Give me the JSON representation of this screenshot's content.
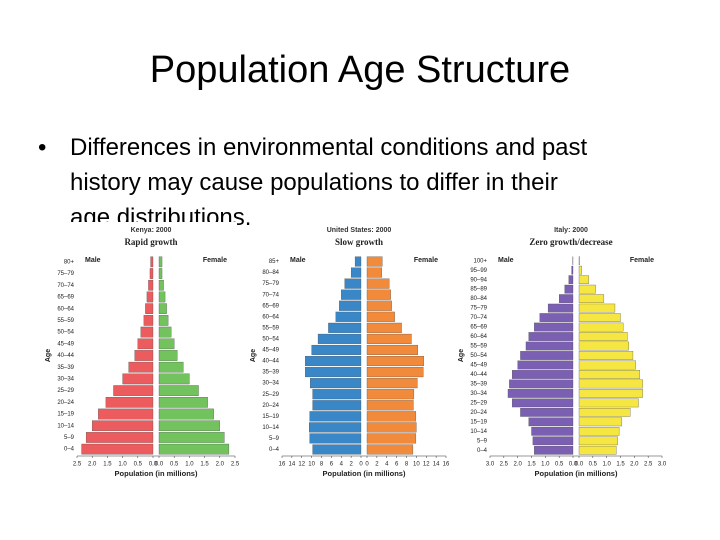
{
  "slide": {
    "title": "Population Age Structure",
    "bullet": [
      "Differences in environmental conditions and past",
      "history may cause populations to differ in their",
      "age distributions."
    ]
  },
  "chart_data": [
    {
      "type": "pyramid",
      "title": "Kenya: 2000",
      "subtitle": "Rapid growth",
      "xlabel": "Population (in millions)",
      "ylabel": "Age",
      "categories": [
        "0–4",
        "5–9",
        "10–14",
        "15–19",
        "20–24",
        "25–29",
        "30–34",
        "35–39",
        "40–44",
        "45–49",
        "50–54",
        "55–59",
        "60–64",
        "65–69",
        "70–74",
        "75–79",
        "80+"
      ],
      "series": [
        {
          "name": "Male",
          "color": "#ec5c5e",
          "values": [
            2.35,
            2.2,
            2.0,
            1.8,
            1.55,
            1.3,
            1.0,
            0.8,
            0.6,
            0.5,
            0.4,
            0.3,
            0.25,
            0.2,
            0.15,
            0.1,
            0.08
          ]
        },
        {
          "name": "Female",
          "color": "#72c25e",
          "values": [
            2.3,
            2.15,
            2.0,
            1.8,
            1.6,
            1.3,
            1.0,
            0.8,
            0.6,
            0.5,
            0.4,
            0.3,
            0.25,
            0.2,
            0.15,
            0.1,
            0.1
          ]
        }
      ],
      "xlim": [
        0,
        2.5
      ],
      "xticks": [
        {
          "value": 0,
          "label": "0.0"
        },
        0.5,
        {
          "value": 1,
          "label": "1.0"
        },
        1.5,
        {
          "value": 2,
          "label": "2.0"
        },
        2.5
      ]
    },
    {
      "type": "pyramid",
      "title": "United States: 2000",
      "subtitle": "Slow growth",
      "xlabel": "Population (in millions)",
      "ylabel": "Age",
      "categories": [
        "0–4",
        "5–9",
        "10–14",
        "15–19",
        "20–24",
        "25–29",
        "30–34",
        "35–39",
        "40–44",
        "45–49",
        "50–54",
        "55–59",
        "60–64",
        "65–69",
        "70–74",
        "75–79",
        "80–84",
        "85+"
      ],
      "series": [
        {
          "name": "Male",
          "color": "#3a87c8",
          "values": [
            9.8,
            10.4,
            10.5,
            10.4,
            9.8,
            9.8,
            10.3,
            11.3,
            11.3,
            10.0,
            8.7,
            6.6,
            5.1,
            4.4,
            4.0,
            3.3,
            2.0,
            1.2
          ]
        },
        {
          "name": "Female",
          "color": "#f28a3c",
          "values": [
            9.3,
            9.9,
            10.0,
            9.9,
            9.4,
            9.5,
            10.2,
            11.4,
            11.5,
            10.3,
            9.0,
            7.0,
            5.6,
            5.0,
            4.8,
            4.5,
            3.0,
            3.1
          ]
        }
      ],
      "xlim": [
        0,
        16
      ],
      "xticks": [
        0,
        2,
        4,
        6,
        8,
        10,
        12,
        14,
        16
      ]
    },
    {
      "type": "pyramid",
      "title": "Italy: 2000",
      "subtitle": "Zero growth/decrease",
      "xlabel": "Population (in millions)",
      "ylabel": "Age",
      "categories": [
        "0–4",
        "5–9",
        "10–14",
        "15–19",
        "20–24",
        "25–29",
        "30–34",
        "35–39",
        "40–44",
        "45–49",
        "50–54",
        "55–59",
        "60–64",
        "65–69",
        "70–74",
        "75–79",
        "80–84",
        "85–89",
        "90–94",
        "95–99",
        "100+"
      ],
      "series": [
        {
          "name": "Male",
          "color": "#7b5fb2",
          "values": [
            1.4,
            1.45,
            1.5,
            1.6,
            1.9,
            2.2,
            2.35,
            2.3,
            2.2,
            2.0,
            1.9,
            1.7,
            1.6,
            1.4,
            1.2,
            0.9,
            0.5,
            0.3,
            0.15,
            0.05,
            0.01
          ]
        },
        {
          "name": "Female",
          "color": "#f5e642",
          "values": [
            1.35,
            1.4,
            1.45,
            1.55,
            1.85,
            2.15,
            2.3,
            2.3,
            2.2,
            2.05,
            1.95,
            1.8,
            1.75,
            1.6,
            1.5,
            1.3,
            0.9,
            0.6,
            0.35,
            0.1,
            0.02
          ]
        }
      ],
      "xlim": [
        0,
        3
      ],
      "xticks": [
        {
          "value": 0,
          "label": "0.0"
        },
        0.5,
        {
          "value": 1,
          "label": "1.0"
        },
        1.5,
        {
          "value": 2,
          "label": "2.0"
        },
        2.5,
        {
          "value": 3,
          "label": "3.0"
        }
      ]
    }
  ]
}
